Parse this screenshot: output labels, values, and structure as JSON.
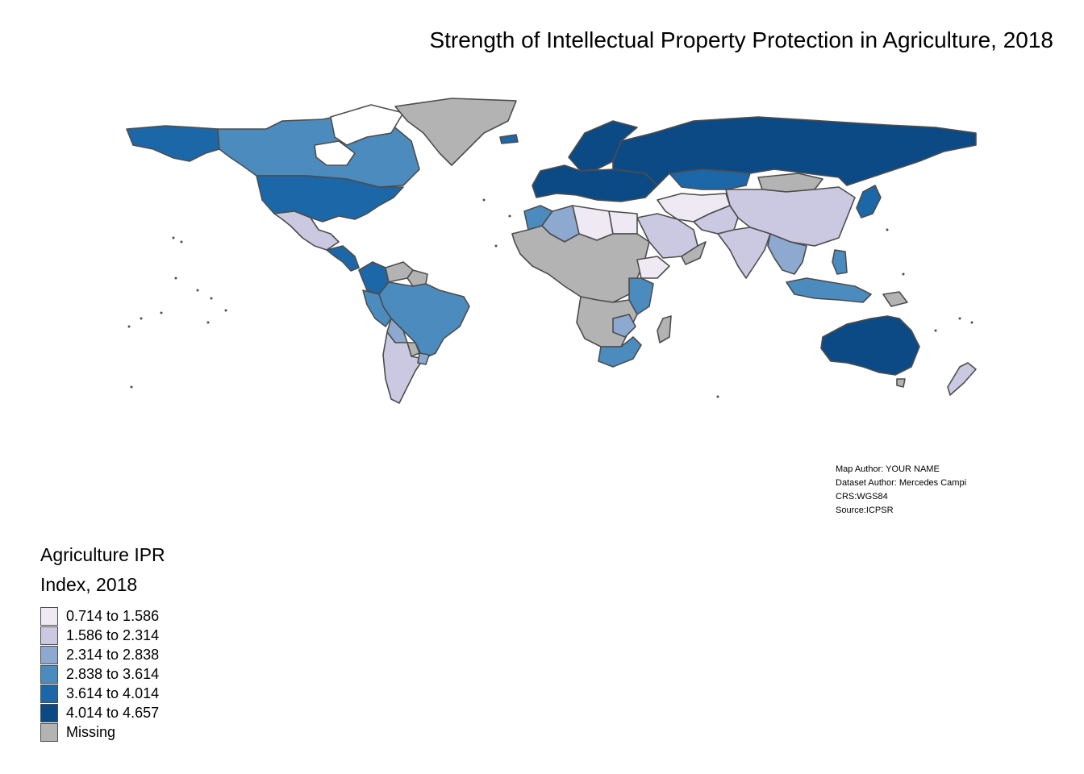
{
  "title": "Strength of Intellectual Property Protection in Agriculture, 2018",
  "credits": [
    "Map Author: YOUR NAME",
    "Dataset Author: Mercedes Campi",
    "CRS:WGS84",
    "Source:ICPSR"
  ],
  "legend": {
    "title_line1": "Agriculture IPR",
    "title_line2": "Index, 2018",
    "items": [
      {
        "label": "0.714 to 1.586",
        "color": "#efe9f3"
      },
      {
        "label": "1.586 to 2.314",
        "color": "#cbc9e2"
      },
      {
        "label": "2.314 to 2.838",
        "color": "#8ea9d0"
      },
      {
        "label": "2.838 to 3.614",
        "color": "#4b8bbe"
      },
      {
        "label": "3.614 to 4.014",
        "color": "#1c67a8"
      },
      {
        "label": "4.014 to 4.657",
        "color": "#0c4a85"
      },
      {
        "label": "Missing",
        "color": "#b3b3b3"
      }
    ]
  },
  "map": {
    "border_color": "#4d4d4d",
    "regions": [
      {
        "name": "Alaska",
        "class": 4
      },
      {
        "name": "Canada",
        "class": 3
      },
      {
        "name": "Greenland",
        "class": 6
      },
      {
        "name": "United States",
        "class": 4
      },
      {
        "name": "Mexico",
        "class": 1
      },
      {
        "name": "Central America",
        "class": 4
      },
      {
        "name": "Colombia",
        "class": 4
      },
      {
        "name": "Venezuela",
        "class": 6
      },
      {
        "name": "Brazil",
        "class": 3
      },
      {
        "name": "Peru",
        "class": 3
      },
      {
        "name": "Bolivia",
        "class": 2
      },
      {
        "name": "Argentina",
        "class": 1
      },
      {
        "name": "Uruguay",
        "class": 2
      },
      {
        "name": "Western Europe",
        "class": 5
      },
      {
        "name": "Scandinavia",
        "class": 5
      },
      {
        "name": "Russia",
        "class": 5
      },
      {
        "name": "Kazakhstan",
        "class": 4
      },
      {
        "name": "China",
        "class": 1
      },
      {
        "name": "Mongolia",
        "class": 6
      },
      {
        "name": "Japan",
        "class": 4
      },
      {
        "name": "India",
        "class": 1
      },
      {
        "name": "Middle East",
        "class": 0
      },
      {
        "name": "Iran",
        "class": 1
      },
      {
        "name": "Arabia",
        "class": 1
      },
      {
        "name": "Morocco",
        "class": 3
      },
      {
        "name": "Algeria",
        "class": 2
      },
      {
        "name": "Libya",
        "class": 0
      },
      {
        "name": "Egypt",
        "class": 0
      },
      {
        "name": "Sahel and Central Africa",
        "class": 6
      },
      {
        "name": "Ethiopia",
        "class": 0
      },
      {
        "name": "Kenya and Tanzania",
        "class": 3
      },
      {
        "name": "Southern Africa",
        "class": 6
      },
      {
        "name": "Zimbabwe",
        "class": 2
      },
      {
        "name": "South Africa",
        "class": 3
      },
      {
        "name": "Madagascar",
        "class": 6
      },
      {
        "name": "Southeast Asia",
        "class": 2
      },
      {
        "name": "Indonesia",
        "class": 3
      },
      {
        "name": "Philippines",
        "class": 3
      },
      {
        "name": "Papua New Guinea",
        "class": 6
      },
      {
        "name": "Australia",
        "class": 5
      },
      {
        "name": "New Zealand",
        "class": 1
      },
      {
        "name": "Iceland",
        "class": 4
      }
    ]
  }
}
